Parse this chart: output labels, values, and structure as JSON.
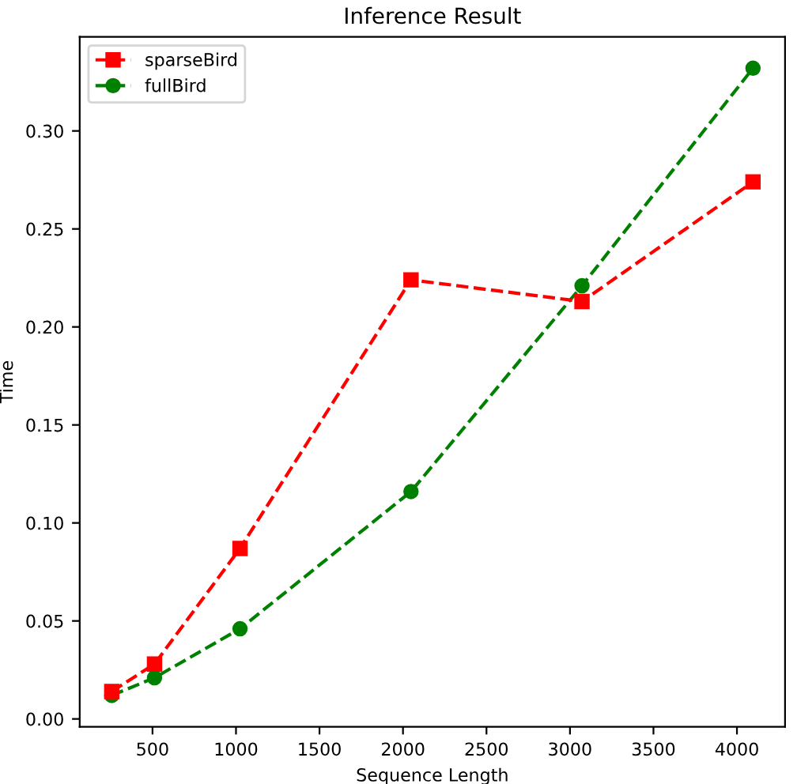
{
  "chart_data": {
    "type": "line",
    "title": "Inference Result",
    "xlabel": "Sequence Length",
    "ylabel": "Time",
    "x": [
      256,
      512,
      1024,
      2048,
      3072,
      4096
    ],
    "series": [
      {
        "name": "sparseBird",
        "color": "#ff0000",
        "marker": "square",
        "values": [
          0.014,
          0.028,
          0.087,
          0.224,
          0.213,
          0.274
        ]
      },
      {
        "name": "fullBird",
        "color": "#008000",
        "marker": "circle",
        "values": [
          0.012,
          0.021,
          0.046,
          0.116,
          0.221,
          0.332
        ]
      }
    ],
    "line_style": "dashed",
    "legend": "top left",
    "grid": false,
    "xlim": [
      64,
      4288
    ],
    "xticks": [
      500,
      1000,
      1500,
      2000,
      2500,
      3000,
      3500,
      4000
    ],
    "ylim": [
      -0.004,
      0.348
    ],
    "yticks": [
      {
        "value": 0,
        "label": "0.00"
      },
      {
        "value": 0.05,
        "label": "0.05"
      },
      {
        "value": 0.1,
        "label": "0.10"
      },
      {
        "value": 0.15,
        "label": "0.15"
      },
      {
        "value": 0.2,
        "label": "0.20"
      },
      {
        "value": 0.25,
        "label": "0.25"
      },
      {
        "value": 0.3,
        "label": "0.30"
      }
    ]
  }
}
